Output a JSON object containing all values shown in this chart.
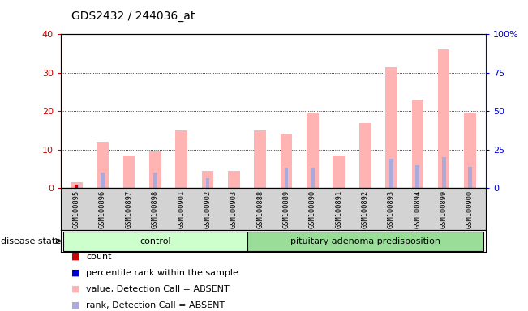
{
  "title": "GDS2432 / 244036_at",
  "samples": [
    "GSM100895",
    "GSM100896",
    "GSM100897",
    "GSM100898",
    "GSM100901",
    "GSM100902",
    "GSM100903",
    "GSM100888",
    "GSM100889",
    "GSM100890",
    "GSM100891",
    "GSM100892",
    "GSM100893",
    "GSM100894",
    "GSM100899",
    "GSM100900"
  ],
  "pink_values": [
    1.5,
    12.0,
    8.5,
    9.5,
    15.0,
    4.5,
    4.5,
    15.0,
    14.0,
    19.5,
    8.5,
    17.0,
    31.5,
    23.0,
    36.0,
    19.5
  ],
  "blue_values": [
    2.5,
    10.0,
    0.0,
    10.0,
    0.0,
    6.5,
    0.0,
    0.0,
    13.5,
    13.5,
    0.0,
    0.0,
    19.0,
    15.0,
    20.0,
    14.0
  ],
  "red_values": [
    1.0,
    0.0,
    0.0,
    0.0,
    0.0,
    0.0,
    0.0,
    0.0,
    0.0,
    0.0,
    0.0,
    0.0,
    0.0,
    0.0,
    0.0,
    0.0
  ],
  "groups": [
    {
      "label": "control",
      "start": 0,
      "end": 7
    },
    {
      "label": "pituitary adenoma predisposition",
      "start": 7,
      "end": 16
    }
  ],
  "ylim_left": [
    0,
    40
  ],
  "ylim_right": [
    0,
    100
  ],
  "yticks_left": [
    0,
    10,
    20,
    30,
    40
  ],
  "yticks_right": [
    0,
    25,
    50,
    75,
    100
  ],
  "ytick_labels_right": [
    "0",
    "25",
    "50",
    "75",
    "100%"
  ],
  "left_tick_color": "#cc0000",
  "right_tick_color": "#0000cc",
  "bar_pink": "#ffb3b3",
  "bar_blue": "#aaaadd",
  "bar_red": "#cc0000",
  "bg_samples": "#d3d3d3",
  "bg_group_control": "#ccffcc",
  "bg_group_disease": "#99dd99",
  "disease_state_label": "disease state",
  "legend_items": [
    {
      "color": "#cc0000",
      "label": "count"
    },
    {
      "color": "#0000cc",
      "label": "percentile rank within the sample"
    },
    {
      "color": "#ffb3b3",
      "label": "value, Detection Call = ABSENT"
    },
    {
      "color": "#aaaadd",
      "label": "rank, Detection Call = ABSENT"
    }
  ]
}
